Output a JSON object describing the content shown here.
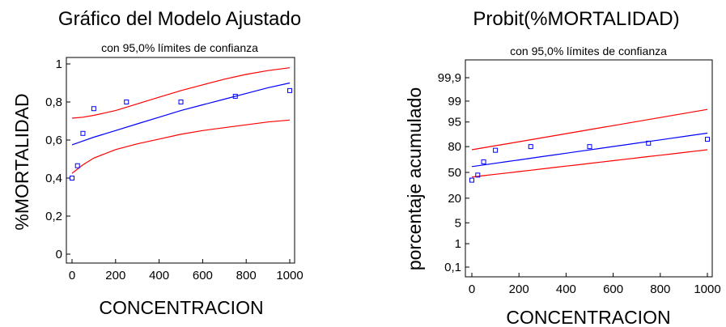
{
  "colors": {
    "fit": "#0000ff",
    "limits": "#ff0000",
    "points": "#0000ff",
    "axis": "#000000"
  },
  "chart_data": [
    {
      "type": "line",
      "title": "Gráfico del Modelo Ajustado",
      "subtitle": "con  95,0% límites de confianza",
      "xlabel": "CONCENTRACION",
      "ylabel": "%MORTALIDAD",
      "xlim": [
        0,
        1000
      ],
      "ylim": [
        0,
        1
      ],
      "x_ticks": [
        0,
        200,
        400,
        600,
        800,
        1000
      ],
      "y_ticks": [
        0,
        0.2,
        0.4,
        0.6,
        0.8,
        1
      ],
      "x_tick_labels": [
        "0",
        "200",
        "400",
        "600",
        "800",
        "1000"
      ],
      "y_tick_labels": [
        "0",
        "0,2",
        "0,4",
        "0,6",
        "0,8",
        "1"
      ],
      "scatter": {
        "x": [
          0,
          25,
          50,
          100,
          250,
          500,
          750,
          1000
        ],
        "y": [
          0.4,
          0.465,
          0.635,
          0.765,
          0.8,
          0.8,
          0.83,
          0.86
        ]
      },
      "series": [
        {
          "role": "fit",
          "x": [
            0,
            50,
            100,
            200,
            300,
            400,
            500,
            600,
            700,
            800,
            900,
            1000
          ],
          "y": [
            0.575,
            0.595,
            0.615,
            0.65,
            0.685,
            0.72,
            0.755,
            0.785,
            0.815,
            0.845,
            0.875,
            0.9
          ]
        },
        {
          "role": "upper",
          "x": [
            0,
            50,
            100,
            200,
            300,
            400,
            500,
            600,
            700,
            800,
            900,
            1000
          ],
          "y": [
            0.715,
            0.72,
            0.73,
            0.755,
            0.79,
            0.825,
            0.86,
            0.89,
            0.92,
            0.945,
            0.965,
            0.98
          ]
        },
        {
          "role": "lower",
          "x": [
            0,
            50,
            100,
            200,
            300,
            400,
            500,
            600,
            700,
            800,
            900,
            1000
          ],
          "y": [
            0.425,
            0.47,
            0.505,
            0.55,
            0.58,
            0.605,
            0.63,
            0.65,
            0.665,
            0.68,
            0.695,
            0.705
          ]
        }
      ]
    },
    {
      "type": "line",
      "title": "Probit(%MORTALIDAD)",
      "subtitle": "con  95,0% límites de confianza",
      "xlabel": "CONCENTRACION",
      "ylabel": "porcentaje acumulado",
      "yscale": "probit",
      "xlim": [
        0,
        1000
      ],
      "ylim": [
        0.1,
        99.9
      ],
      "x_ticks": [
        0,
        200,
        400,
        600,
        800,
        1000
      ],
      "y_ticks": [
        0.1,
        1,
        5,
        20,
        50,
        80,
        95,
        99,
        99.9
      ],
      "x_tick_labels": [
        "0",
        "200",
        "400",
        "600",
        "800",
        "1000"
      ],
      "y_tick_labels": [
        "0,1",
        "1",
        "5",
        "20",
        "50",
        "80",
        "95",
        "99",
        "99,9"
      ],
      "scatter": {
        "x": [
          0,
          25,
          50,
          100,
          250,
          500,
          750,
          1000
        ],
        "y": [
          40,
          46.5,
          63.5,
          76.5,
          80,
          80,
          83,
          86
        ]
      },
      "series": [
        {
          "role": "fit",
          "x": [
            0,
            1000
          ],
          "y": [
            57.5,
            90
          ]
        },
        {
          "role": "upper",
          "x": [
            0,
            1000
          ],
          "y": [
            77,
            98
          ]
        },
        {
          "role": "lower",
          "x": [
            0,
            1000
          ],
          "y": [
            44,
            77
          ]
        }
      ]
    }
  ]
}
